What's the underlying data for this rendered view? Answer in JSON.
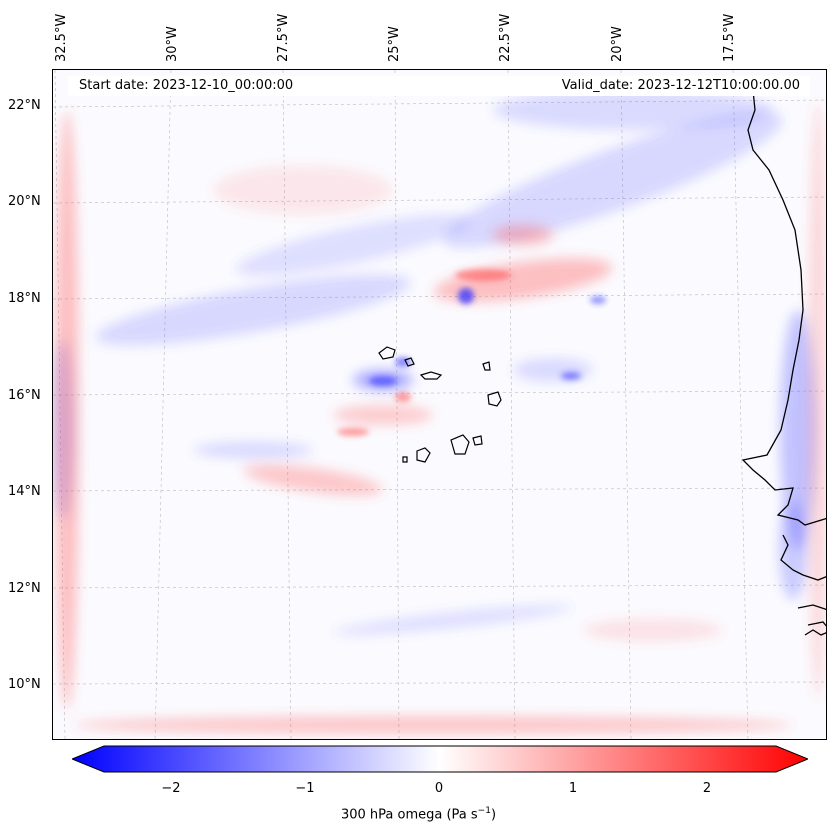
{
  "map": {
    "lon_labels": [
      "32.5°W",
      "30°W",
      "27.5°W",
      "25°W",
      "22.5°W",
      "20°W",
      "17.5°W"
    ],
    "lat_labels": [
      "22°N",
      "20°N",
      "18°N",
      "16°N",
      "14°N",
      "12°N",
      "10°N"
    ],
    "start_date": "Start date: 2023-12-10_00:00:00",
    "valid_date": "Valid_date: 2023-12-12T10:00:00.00"
  },
  "colorbar": {
    "ticks": [
      "−2",
      "−1",
      "0",
      "1",
      "2"
    ],
    "label": "300 hPa omega (Pa s",
    "label_exp": "−1",
    "label_end": ")",
    "colors": {
      "low": "#0000ff",
      "mid": "#ffffff",
      "high": "#ff0000"
    }
  }
}
